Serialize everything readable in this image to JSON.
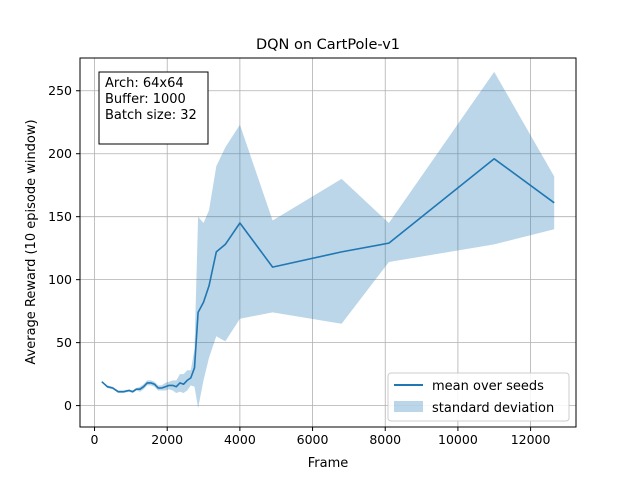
{
  "chart_data": {
    "type": "line",
    "title": "DQN on CartPole-v1",
    "xlabel": "Frame",
    "ylabel": "Average Reward (10 episode window)",
    "xlim": [
      -400,
      13250
    ],
    "ylim": [
      -17,
      276
    ],
    "xticks": [
      0,
      2000,
      4000,
      6000,
      8000,
      10000,
      12000
    ],
    "yticks": [
      0,
      50,
      100,
      150,
      200,
      250
    ],
    "grid": true,
    "legend_position": "lower-right",
    "annotation": [
      "Arch: 64x64",
      "Buffer: 1000",
      "Batch size: 32"
    ],
    "series": [
      {
        "name": "mean over seeds",
        "color": "#1f77b4",
        "x": [
          200,
          350,
          500,
          650,
          800,
          950,
          1050,
          1150,
          1250,
          1350,
          1450,
          1550,
          1650,
          1750,
          1850,
          1950,
          2050,
          2150,
          2250,
          2350,
          2450,
          2550,
          2650,
          2750,
          2850,
          3000,
          3150,
          3350,
          3600,
          4000,
          4900,
          6800,
          8100,
          11000,
          12650
        ],
        "y": [
          19,
          15,
          14,
          11,
          11,
          12,
          11,
          13,
          13,
          15,
          18,
          18,
          17,
          14,
          14,
          15,
          16,
          16,
          15,
          18,
          17,
          20,
          22,
          30,
          74,
          82,
          95,
          122,
          128,
          145,
          110,
          122,
          129,
          196,
          161
        ]
      },
      {
        "name": "standard deviation",
        "color": "#1f77b4",
        "opacity": 0.3,
        "x": [
          200,
          350,
          500,
          650,
          800,
          950,
          1050,
          1150,
          1250,
          1350,
          1450,
          1550,
          1650,
          1750,
          1850,
          1950,
          2050,
          2150,
          2250,
          2350,
          2450,
          2550,
          2650,
          2750,
          2850,
          3000,
          3150,
          3350,
          3600,
          4000,
          4900,
          6800,
          8100,
          11000,
          12650
        ],
        "upper": [
          19,
          16,
          15,
          12,
          12,
          13,
          12,
          14,
          15,
          17,
          20,
          20,
          19,
          16,
          16,
          18,
          19,
          20,
          20,
          25,
          25,
          28,
          28,
          45,
          150,
          145,
          155,
          190,
          205,
          223,
          147,
          180,
          145,
          265,
          182
        ],
        "lower": [
          19,
          14,
          13,
          10,
          10,
          11,
          10,
          12,
          11,
          13,
          16,
          16,
          15,
          12,
          12,
          12,
          13,
          12,
          10,
          11,
          10,
          12,
          16,
          15,
          -2,
          20,
          38,
          55,
          51,
          69,
          74,
          65,
          114,
          128,
          140
        ]
      }
    ]
  }
}
